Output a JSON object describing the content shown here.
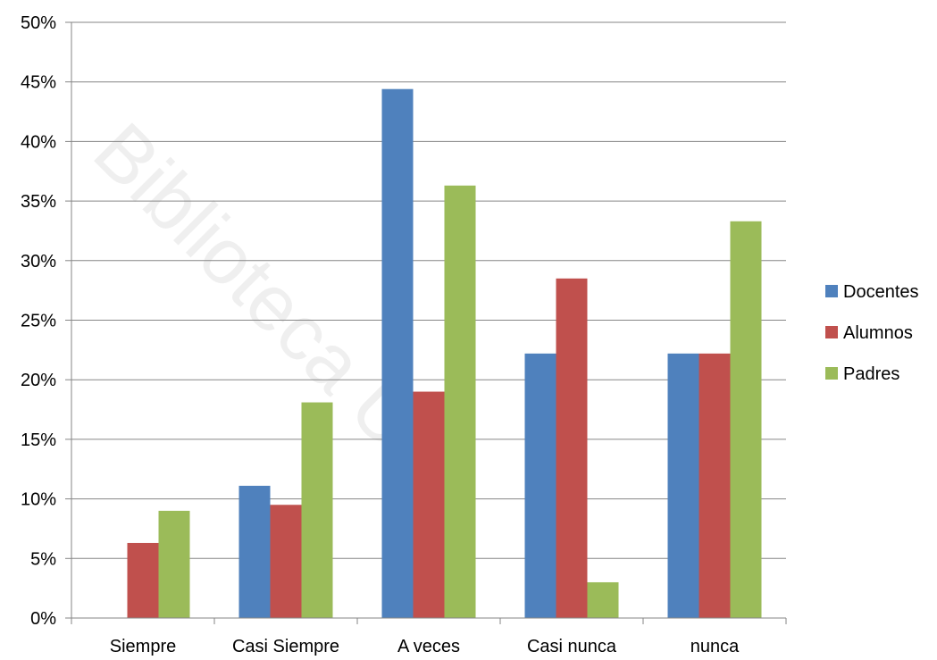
{
  "chart_data": {
    "type": "bar",
    "categories": [
      "Siempre",
      "Casi Siempre",
      "A veces",
      "Casi nunca",
      "nunca"
    ],
    "series": [
      {
        "name": "Docentes",
        "color": "#4f81bd",
        "values": [
          0,
          11.1,
          44.4,
          22.2,
          22.2
        ]
      },
      {
        "name": "Alumnos",
        "color": "#c0504d",
        "values": [
          6.3,
          9.5,
          19.0,
          28.5,
          22.2
        ]
      },
      {
        "name": "Padres",
        "color": "#9bbb59",
        "values": [
          9.0,
          18.1,
          36.3,
          3.0,
          33.3
        ]
      }
    ],
    "ylim": [
      0,
      50
    ],
    "yticks": [
      0,
      5,
      10,
      15,
      20,
      25,
      30,
      35,
      40,
      45,
      50
    ],
    "ytick_labels": [
      "0%",
      "5%",
      "10%",
      "15%",
      "20%",
      "25%",
      "30%",
      "35%",
      "40%",
      "45%",
      "50%"
    ],
    "grid": true,
    "legend_position": "right",
    "watermark": "Biblioteca UP"
  }
}
